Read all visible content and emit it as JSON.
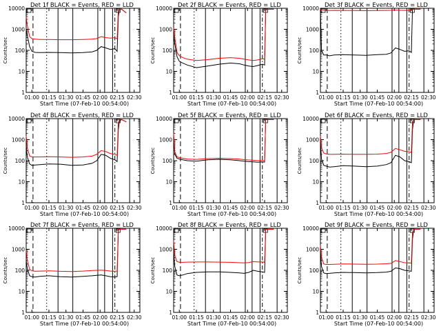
{
  "figure": {
    "ylabel": "Counts/sec",
    "xlabel": "Start Time (07-Feb-10 00:54:00)",
    "x_ticks": [
      "01:00",
      "01:15",
      "01:30",
      "01:45",
      "02:00",
      "02:15",
      "02:30"
    ],
    "y_ticks": [
      "1",
      "10",
      "100",
      "1000",
      "10000"
    ],
    "colors": {
      "events": "#000000",
      "lld": "#ff0000"
    }
  },
  "chart_data": [
    {
      "type": "line",
      "title": "Det 1f BLACK = Events, RED = LLD",
      "x_unit": "minutes after 00:54:00",
      "xlim": [
        0,
        100
      ],
      "ylim": [
        1,
        10000
      ],
      "yscale": "log",
      "series": [
        {
          "name": "Events",
          "color": "#000000",
          "x": [
            0,
            1,
            3,
            5,
            8,
            12,
            20,
            30,
            40,
            50,
            58,
            62,
            66,
            70,
            74,
            78,
            80,
            81,
            82,
            84,
            88
          ],
          "y": [
            1000,
            500,
            150,
            90,
            80,
            78,
            80,
            78,
            75,
            78,
            85,
            100,
            150,
            130,
            110,
            120,
            90,
            4000,
            9000,
            9000,
            6000
          ]
        },
        {
          "name": "LLD",
          "color": "#ff0000",
          "x": [
            0,
            1,
            3,
            5,
            8,
            12,
            20,
            30,
            40,
            50,
            58,
            62,
            66,
            70,
            74,
            78,
            80,
            81,
            82,
            84,
            88
          ],
          "y": [
            4000,
            1500,
            450,
            360,
            340,
            330,
            330,
            320,
            320,
            330,
            340,
            360,
            450,
            400,
            380,
            400,
            350,
            8000,
            9000,
            9000,
            6000
          ]
        }
      ]
    },
    {
      "type": "line",
      "title": "Det 2f BLACK = Events, RED = LLD",
      "x_unit": "minutes after 00:54:00",
      "xlim": [
        0,
        100
      ],
      "ylim": [
        1,
        10000
      ],
      "yscale": "log",
      "series": [
        {
          "name": "Events",
          "color": "#000000",
          "x": [
            0,
            1,
            3,
            5,
            8,
            12,
            20,
            30,
            40,
            50,
            58,
            62,
            66,
            70,
            74,
            78,
            80,
            81,
            82,
            84,
            88
          ],
          "y": [
            600,
            200,
            50,
            30,
            25,
            20,
            15,
            18,
            22,
            25,
            23,
            20,
            18,
            17,
            19,
            22,
            20,
            8000,
            9000,
            9000,
            9000
          ]
        },
        {
          "name": "LLD",
          "color": "#ff0000",
          "x": [
            0,
            1,
            3,
            5,
            8,
            12,
            20,
            30,
            40,
            50,
            58,
            62,
            66,
            70,
            74,
            78,
            80,
            81,
            82,
            84,
            88
          ],
          "y": [
            1200,
            400,
            80,
            55,
            45,
            38,
            33,
            36,
            42,
            45,
            42,
            38,
            35,
            33,
            35,
            40,
            38,
            9000,
            9000,
            9000,
            9000
          ]
        }
      ]
    },
    {
      "type": "line",
      "title": "Det 3f BLACK = Events, RED = LLD",
      "x_unit": "minutes after 00:54:00",
      "xlim": [
        0,
        100
      ],
      "ylim": [
        1,
        10000
      ],
      "yscale": "log",
      "series": [
        {
          "name": "Events",
          "color": "#000000",
          "x": [
            0,
            1,
            3,
            5,
            8,
            12,
            20,
            30,
            40,
            50,
            58,
            62,
            66,
            70,
            74,
            78,
            80,
            81,
            82,
            84,
            88
          ],
          "y": [
            8000,
            100,
            60,
            60,
            55,
            60,
            62,
            60,
            58,
            62,
            65,
            75,
            130,
            110,
            90,
            95,
            80,
            9000,
            9000,
            9000,
            9000
          ]
        },
        {
          "name": "LLD",
          "color": "#ff0000",
          "x": [
            0,
            1,
            3,
            5,
            8,
            12,
            20,
            30,
            40,
            50,
            58,
            62,
            66,
            70,
            74,
            78,
            80,
            81,
            82,
            84,
            88
          ],
          "y": [
            9000,
            8000,
            8000,
            7800,
            7800,
            7900,
            7800,
            7800,
            7700,
            7800,
            7900,
            8000,
            8200,
            8000,
            7900,
            8000,
            8000,
            9000,
            9000,
            9000,
            9000
          ]
        }
      ]
    },
    {
      "type": "line",
      "title": "Det 4f BLACK = Events, RED = LLD",
      "x_unit": "minutes after 00:54:00",
      "xlim": [
        0,
        100
      ],
      "ylim": [
        1,
        10000
      ],
      "yscale": "log",
      "series": [
        {
          "name": "Events",
          "color": "#000000",
          "x": [
            0,
            1,
            3,
            5,
            8,
            12,
            20,
            30,
            40,
            50,
            58,
            62,
            66,
            70,
            74,
            78,
            80,
            81,
            82,
            84,
            88
          ],
          "y": [
            500,
            150,
            70,
            60,
            62,
            65,
            70,
            68,
            60,
            62,
            75,
            100,
            200,
            180,
            130,
            110,
            90,
            3000,
            8000,
            9000,
            7000
          ]
        },
        {
          "name": "LLD",
          "color": "#ff0000",
          "x": [
            0,
            1,
            3,
            5,
            8,
            12,
            20,
            30,
            40,
            50,
            58,
            62,
            66,
            70,
            74,
            78,
            80,
            81,
            82,
            84,
            88
          ],
          "y": [
            1500,
            400,
            170,
            150,
            150,
            150,
            155,
            150,
            145,
            150,
            165,
            200,
            300,
            270,
            220,
            200,
            180,
            6000,
            9000,
            9000,
            7000
          ]
        }
      ]
    },
    {
      "type": "line",
      "title": "Det 5f BLACK = Events, RED = LLD",
      "x_unit": "minutes after 00:54:00",
      "xlim": [
        0,
        100
      ],
      "ylim": [
        1,
        10000
      ],
      "yscale": "log",
      "series": [
        {
          "name": "Events",
          "color": "#000000",
          "x": [
            0,
            1,
            3,
            5,
            8,
            12,
            20,
            30,
            40,
            50,
            58,
            62,
            66,
            70,
            74,
            78,
            80,
            81,
            82,
            84,
            88
          ],
          "y": [
            1500,
            200,
            130,
            120,
            110,
            100,
            95,
            110,
            115,
            110,
            100,
            95,
            90,
            88,
            85,
            87,
            86,
            9000,
            9000,
            9000,
            9000
          ]
        },
        {
          "name": "LLD",
          "color": "#ff0000",
          "x": [
            0,
            1,
            3,
            5,
            8,
            12,
            20,
            30,
            40,
            50,
            58,
            62,
            66,
            70,
            74,
            78,
            80,
            81,
            82,
            84,
            88
          ],
          "y": [
            2000,
            260,
            150,
            140,
            130,
            120,
            115,
            125,
            130,
            125,
            118,
            112,
            108,
            105,
            100,
            102,
            100,
            9000,
            9000,
            9000,
            9000
          ]
        }
      ]
    },
    {
      "type": "line",
      "title": "Det 6f BLACK = Events, RED = LLD",
      "x_unit": "minutes after 00:54:00",
      "xlim": [
        0,
        100
      ],
      "ylim": [
        1,
        10000
      ],
      "yscale": "log",
      "series": [
        {
          "name": "Events",
          "color": "#000000",
          "x": [
            0,
            1,
            3,
            5,
            8,
            12,
            20,
            30,
            40,
            50,
            58,
            62,
            66,
            70,
            74,
            78,
            80,
            81,
            82,
            84,
            88
          ],
          "y": [
            800,
            120,
            60,
            55,
            50,
            52,
            58,
            55,
            52,
            55,
            65,
            80,
            180,
            150,
            100,
            90,
            80,
            3000,
            9000,
            9000,
            9000
          ]
        },
        {
          "name": "LLD",
          "color": "#ff0000",
          "x": [
            0,
            1,
            3,
            5,
            8,
            12,
            20,
            30,
            40,
            50,
            58,
            62,
            66,
            70,
            74,
            78,
            80,
            81,
            82,
            84,
            88
          ],
          "y": [
            1500,
            400,
            230,
            210,
            200,
            200,
            205,
            200,
            200,
            205,
            220,
            250,
            380,
            330,
            280,
            260,
            240,
            7000,
            9000,
            9000,
            9000
          ]
        }
      ]
    },
    {
      "type": "line",
      "title": "Det 7f BLACK = Events, RED = LLD",
      "x_unit": "minutes after 00:54:00",
      "xlim": [
        0,
        100
      ],
      "ylim": [
        1,
        10000
      ],
      "yscale": "log",
      "series": [
        {
          "name": "Events",
          "color": "#000000",
          "x": [
            0,
            1,
            3,
            5,
            8,
            12,
            20,
            30,
            40,
            50,
            58,
            62,
            66,
            70,
            74,
            78,
            80,
            81,
            82,
            84,
            88
          ],
          "y": [
            300,
            120,
            55,
            50,
            48,
            52,
            55,
            50,
            48,
            52,
            55,
            58,
            60,
            55,
            50,
            48,
            50,
            8000,
            9000,
            9000,
            9000
          ]
        },
        {
          "name": "LLD",
          "color": "#ff0000",
          "x": [
            0,
            1,
            3,
            5,
            8,
            12,
            20,
            30,
            40,
            50,
            58,
            62,
            66,
            70,
            74,
            78,
            80,
            81,
            82,
            84,
            88
          ],
          "y": [
            900,
            300,
            110,
            95,
            90,
            92,
            95,
            90,
            88,
            92,
            98,
            100,
            102,
            98,
            92,
            90,
            92,
            9000,
            9000,
            9000,
            9000
          ]
        }
      ]
    },
    {
      "type": "line",
      "title": "Det 8f BLACK = Events, RED = LLD",
      "x_unit": "minutes after 00:54:00",
      "xlim": [
        0,
        100
      ],
      "ylim": [
        1,
        10000
      ],
      "yscale": "log",
      "series": [
        {
          "name": "Events",
          "color": "#000000",
          "x": [
            0,
            1,
            3,
            5,
            8,
            12,
            20,
            30,
            40,
            50,
            58,
            62,
            66,
            70,
            74,
            78,
            80,
            81,
            82,
            84,
            88
          ],
          "y": [
            800,
            150,
            60,
            55,
            60,
            70,
            80,
            85,
            85,
            80,
            75,
            72,
            80,
            100,
            90,
            85,
            80,
            9000,
            9000,
            9000,
            9000
          ]
        },
        {
          "name": "LLD",
          "color": "#ff0000",
          "x": [
            0,
            1,
            3,
            5,
            8,
            12,
            20,
            30,
            40,
            50,
            58,
            62,
            66,
            70,
            74,
            78,
            80,
            81,
            82,
            84,
            88
          ],
          "y": [
            2500,
            500,
            260,
            240,
            240,
            245,
            250,
            250,
            245,
            240,
            230,
            225,
            235,
            260,
            250,
            250,
            240,
            9000,
            9000,
            9000,
            9000
          ]
        }
      ]
    },
    {
      "type": "line",
      "title": "Det 9f BLACK = Events, RED = LLD",
      "x_unit": "minutes after 00:54:00",
      "xlim": [
        0,
        100
      ],
      "ylim": [
        1,
        10000
      ],
      "yscale": "log",
      "series": [
        {
          "name": "Events",
          "color": "#000000",
          "x": [
            0,
            1,
            3,
            5,
            8,
            12,
            20,
            30,
            40,
            50,
            58,
            62,
            66,
            70,
            74,
            78,
            80,
            81,
            82,
            84,
            88
          ],
          "y": [
            1000,
            150,
            75,
            70,
            72,
            75,
            80,
            78,
            75,
            78,
            82,
            90,
            130,
            120,
            100,
            95,
            90,
            3000,
            9000,
            9000,
            9000
          ]
        },
        {
          "name": "LLD",
          "color": "#ff0000",
          "x": [
            0,
            1,
            3,
            5,
            8,
            12,
            20,
            30,
            40,
            50,
            58,
            62,
            66,
            70,
            74,
            78,
            80,
            81,
            82,
            84,
            88
          ],
          "y": [
            1500,
            400,
            200,
            190,
            190,
            195,
            200,
            198,
            195,
            198,
            205,
            215,
            290,
            260,
            230,
            225,
            220,
            6000,
            9000,
            9000,
            9000
          ]
        }
      ]
    }
  ]
}
